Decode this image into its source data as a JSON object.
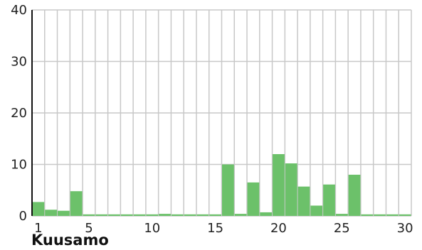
{
  "chart_data": {
    "type": "bar",
    "title": "Kuusamo",
    "categories": [
      1,
      2,
      3,
      4,
      5,
      6,
      7,
      8,
      9,
      10,
      11,
      12,
      13,
      14,
      15,
      16,
      17,
      18,
      19,
      20,
      21,
      22,
      23,
      24,
      25,
      26,
      27,
      28,
      29,
      30
    ],
    "values": [
      2.7,
      1.2,
      1.0,
      4.8,
      0.3,
      0.3,
      0.3,
      0.3,
      0.3,
      0.3,
      0.4,
      0.3,
      0.3,
      0.3,
      0.3,
      10.0,
      0.4,
      6.5,
      0.7,
      12.0,
      10.2,
      5.7,
      2.0,
      6.1,
      0.4,
      8.0,
      0.3,
      0.3,
      0.3,
      0.3
    ],
    "ylim": [
      0,
      40
    ],
    "yticks": [
      0,
      10,
      20,
      30,
      40
    ],
    "xticks": [
      1,
      5,
      10,
      15,
      20,
      25,
      30
    ],
    "grid": true,
    "colors": {
      "bar": "#6cc16a",
      "grid": "#c8c8c8",
      "axis": "#111111"
    }
  }
}
